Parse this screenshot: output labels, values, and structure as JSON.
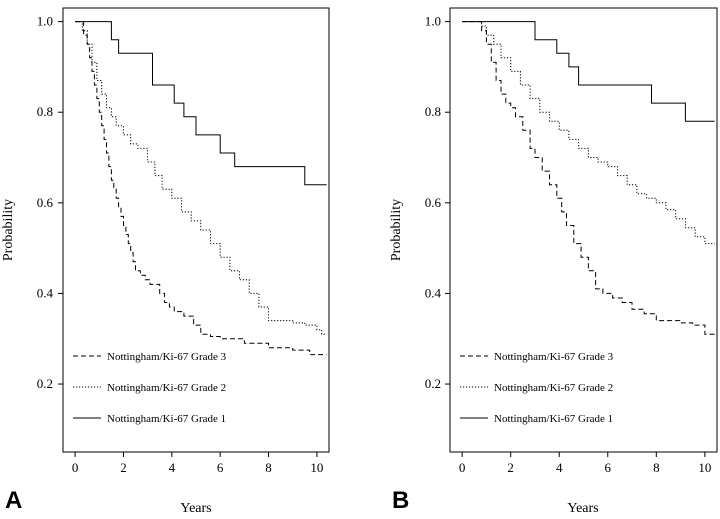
{
  "chart_data": [
    {
      "type": "line",
      "panel_label": "A",
      "xlabel": "Years",
      "ylabel": "Probability",
      "xlim": [
        -0.5,
        10.5
      ],
      "ylim": [
        0.05,
        1.03
      ],
      "x_ticks": [
        0,
        2,
        4,
        6,
        8,
        10
      ],
      "y_ticks": [
        0.2,
        0.4,
        0.6,
        0.8,
        1.0
      ],
      "y_tick_labels": [
        "0.2",
        "0.4",
        "0.6",
        "0.8",
        "1.0"
      ],
      "legend_position": "lower-left",
      "series": [
        {
          "name": "Nottingham/Ki-67 Grade 3",
          "style": "dashed",
          "x": [
            0,
            0.35,
            0.5,
            0.6,
            0.7,
            0.8,
            0.9,
            1.0,
            1.1,
            1.2,
            1.3,
            1.4,
            1.5,
            1.6,
            1.7,
            1.8,
            1.9,
            2.0,
            2.1,
            2.2,
            2.3,
            2.4,
            2.5,
            2.7,
            2.9,
            3.1,
            3.5,
            3.7,
            3.9,
            4.1,
            4.5,
            4.9,
            5.2,
            5.6,
            6.0,
            7.0,
            8.0,
            9.0,
            9.7,
            10.4
          ],
          "y": [
            1.0,
            0.97,
            0.95,
            0.92,
            0.89,
            0.86,
            0.83,
            0.8,
            0.77,
            0.74,
            0.71,
            0.68,
            0.65,
            0.63,
            0.61,
            0.59,
            0.57,
            0.55,
            0.53,
            0.51,
            0.49,
            0.47,
            0.45,
            0.44,
            0.43,
            0.42,
            0.4,
            0.38,
            0.37,
            0.36,
            0.35,
            0.33,
            0.31,
            0.305,
            0.3,
            0.29,
            0.28,
            0.275,
            0.265,
            0.265
          ]
        },
        {
          "name": "Nottingham/Ki-67 Grade 2",
          "style": "dotted",
          "x": [
            0,
            0.3,
            0.5,
            0.7,
            0.9,
            1.1,
            1.3,
            1.5,
            1.7,
            2.0,
            2.3,
            2.6,
            3.0,
            3.3,
            3.6,
            4.0,
            4.4,
            4.8,
            5.2,
            5.6,
            6.0,
            6.4,
            6.8,
            7.2,
            7.6,
            8.0,
            8.5,
            9.0,
            9.5,
            10.0,
            10.2,
            10.4
          ],
          "y": [
            1.0,
            0.98,
            0.95,
            0.91,
            0.87,
            0.84,
            0.81,
            0.79,
            0.77,
            0.75,
            0.73,
            0.72,
            0.69,
            0.66,
            0.63,
            0.61,
            0.58,
            0.56,
            0.54,
            0.51,
            0.48,
            0.45,
            0.43,
            0.4,
            0.37,
            0.34,
            0.34,
            0.335,
            0.33,
            0.32,
            0.31,
            0.31
          ]
        },
        {
          "name": "Nottingham/Ki-67 Grade 1",
          "style": "solid",
          "x": [
            0,
            1.5,
            1.8,
            2.0,
            3.2,
            4.1,
            4.5,
            5.0,
            6.0,
            6.6,
            9.5,
            10.4
          ],
          "y": [
            1.0,
            0.96,
            0.93,
            0.93,
            0.86,
            0.82,
            0.79,
            0.75,
            0.71,
            0.68,
            0.64,
            0.64
          ]
        }
      ]
    },
    {
      "type": "line",
      "panel_label": "B",
      "xlabel": "Years",
      "ylabel": "Probability",
      "xlim": [
        -0.5,
        10.5
      ],
      "ylim": [
        0.05,
        1.03
      ],
      "x_ticks": [
        0,
        2,
        4,
        6,
        8,
        10
      ],
      "y_ticks": [
        0.2,
        0.4,
        0.6,
        0.8,
        1.0
      ],
      "y_tick_labels": [
        "0.2",
        "0.4",
        "0.6",
        "0.8",
        "1.0"
      ],
      "legend_position": "lower-left",
      "series": [
        {
          "name": "Nottingham/Ki-67 Grade 3",
          "style": "dashed",
          "x": [
            0,
            0.8,
            1.0,
            1.2,
            1.4,
            1.6,
            1.8,
            2.0,
            2.2,
            2.5,
            2.8,
            3.0,
            3.3,
            3.6,
            3.9,
            4.1,
            4.3,
            4.6,
            4.9,
            5.2,
            5.5,
            5.8,
            6.2,
            6.6,
            7.0,
            7.5,
            8.0,
            9.0,
            9.5,
            10.0,
            10.4
          ],
          "y": [
            1.0,
            0.98,
            0.95,
            0.91,
            0.87,
            0.84,
            0.82,
            0.81,
            0.79,
            0.76,
            0.72,
            0.7,
            0.67,
            0.64,
            0.61,
            0.58,
            0.55,
            0.51,
            0.48,
            0.45,
            0.41,
            0.4,
            0.39,
            0.38,
            0.365,
            0.355,
            0.34,
            0.335,
            0.33,
            0.31,
            0.305
          ]
        },
        {
          "name": "Nottingham/Ki-67 Grade 2",
          "style": "dotted",
          "x": [
            0,
            0.8,
            1.0,
            1.3,
            1.6,
            2.0,
            2.4,
            2.8,
            3.2,
            3.6,
            4.0,
            4.4,
            4.8,
            5.2,
            5.6,
            6.0,
            6.4,
            6.8,
            7.2,
            7.6,
            8.0,
            8.4,
            8.8,
            9.2,
            9.6,
            10.0,
            10.4
          ],
          "y": [
            1.0,
            0.99,
            0.97,
            0.95,
            0.92,
            0.89,
            0.86,
            0.83,
            0.8,
            0.78,
            0.76,
            0.74,
            0.72,
            0.7,
            0.69,
            0.68,
            0.66,
            0.64,
            0.62,
            0.61,
            0.6,
            0.585,
            0.565,
            0.545,
            0.525,
            0.51,
            0.51
          ]
        },
        {
          "name": "Nottingham/Ki-67 Grade 1",
          "style": "solid",
          "x": [
            0,
            3.0,
            3.9,
            4.4,
            4.8,
            5.2,
            6.0,
            7.8,
            9.2,
            10.4
          ],
          "y": [
            1.0,
            0.96,
            0.93,
            0.9,
            0.86,
            0.86,
            0.86,
            0.82,
            0.78,
            0.78
          ]
        }
      ]
    }
  ]
}
